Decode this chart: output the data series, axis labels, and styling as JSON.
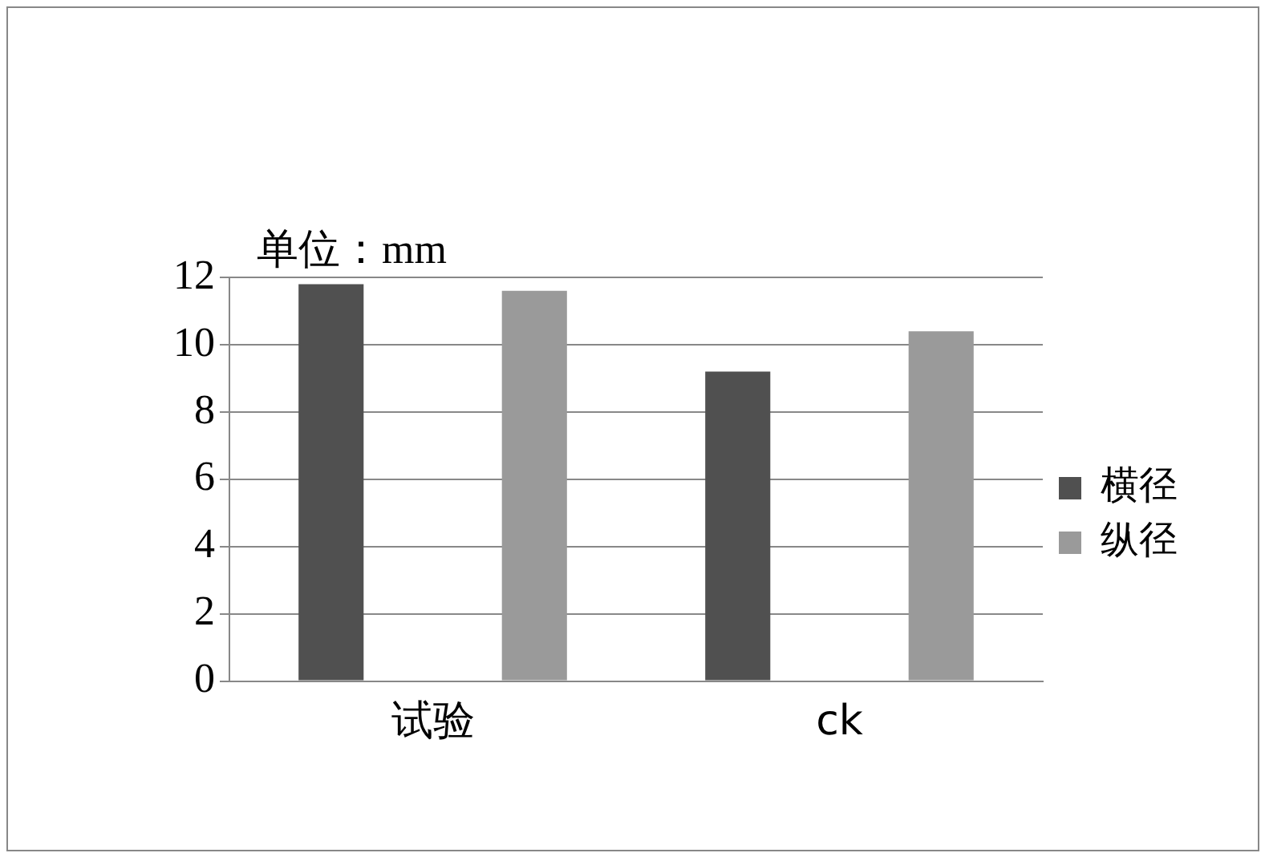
{
  "chart_data": {
    "type": "bar",
    "ylabel": "单位：mm",
    "categories": [
      "试验",
      "ck"
    ],
    "series": [
      {
        "name": "横径",
        "color": "#505050",
        "values": [
          11.8,
          9.2
        ]
      },
      {
        "name": "纵径",
        "color": "#9a9a9a",
        "values": [
          11.6,
          10.4
        ]
      }
    ],
    "ylim": [
      0,
      12
    ],
    "yticks": [
      0,
      2,
      4,
      6,
      8,
      10,
      12
    ],
    "grid": "y",
    "legend": "right"
  }
}
